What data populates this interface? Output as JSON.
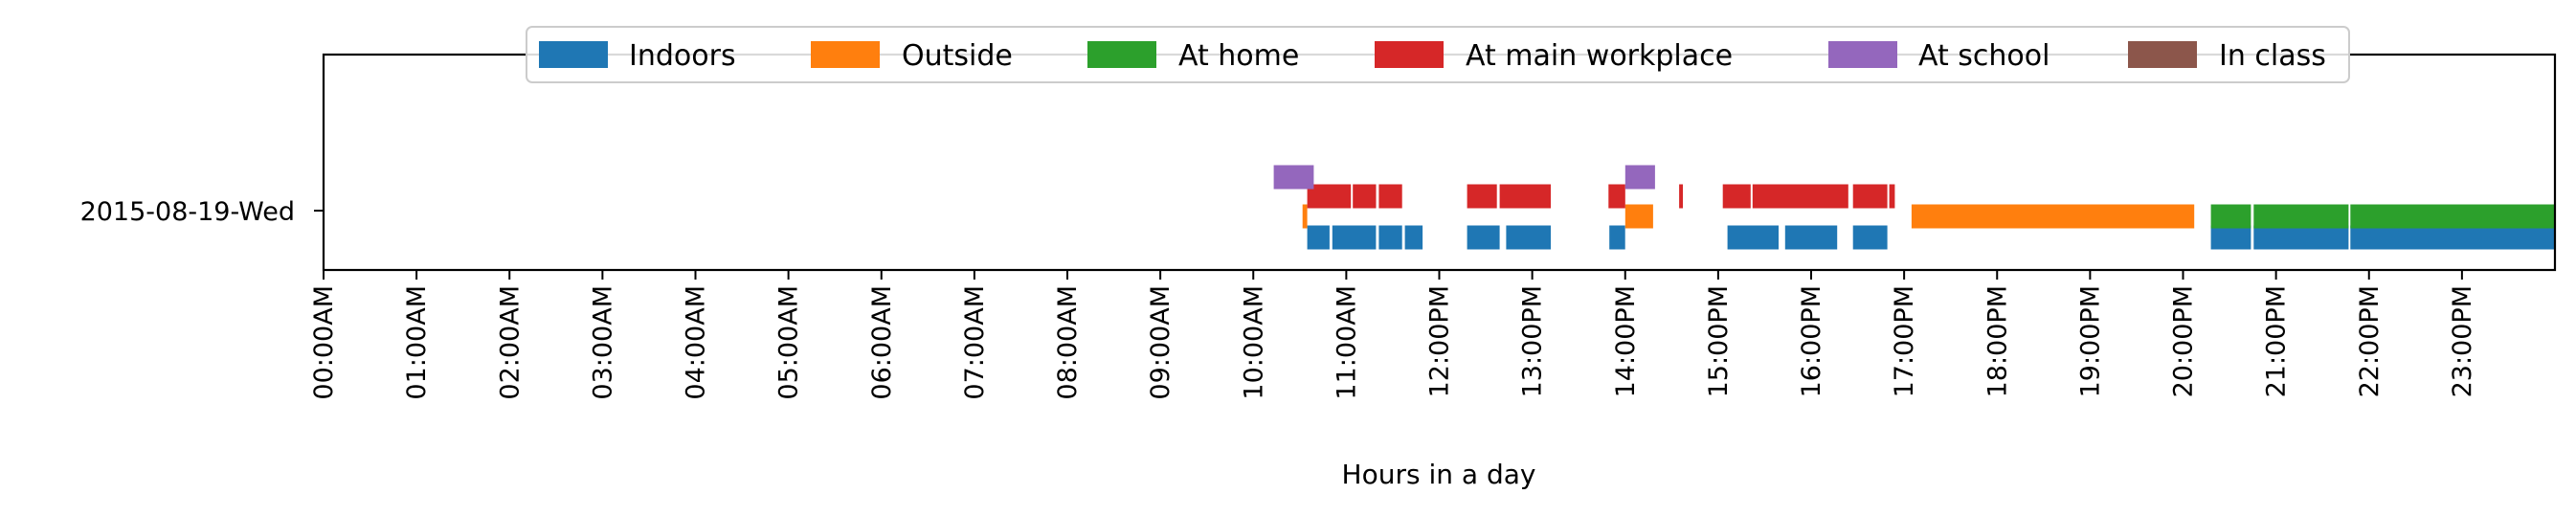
{
  "chart_data": {
    "type": "timeline",
    "xlabel": "Hours in a day",
    "x_ticks": [
      "00:00AM",
      "01:00AM",
      "02:00AM",
      "03:00AM",
      "04:00AM",
      "05:00AM",
      "06:00AM",
      "07:00AM",
      "08:00AM",
      "09:00AM",
      "10:00AM",
      "11:00AM",
      "12:00PM",
      "13:00PM",
      "14:00PM",
      "15:00PM",
      "16:00PM",
      "17:00PM",
      "18:00PM",
      "19:00PM",
      "20:00PM",
      "21:00PM",
      "22:00PM",
      "23:00PM"
    ],
    "xlim": [
      0,
      24
    ],
    "y_categories": [
      "2015-08-19-Wed"
    ],
    "legend_position": "top-center",
    "series": [
      {
        "name": "Indoors",
        "color": "#1f77b4",
        "lane": 0,
        "intervals": [
          [
            10.58,
            10.82
          ],
          [
            10.85,
            11.32
          ],
          [
            11.35,
            11.6
          ],
          [
            11.63,
            11.82
          ],
          [
            12.3,
            12.65
          ],
          [
            12.72,
            13.2
          ],
          [
            13.83,
            14.0
          ],
          [
            15.1,
            15.65
          ],
          [
            15.72,
            16.28
          ],
          [
            16.45,
            16.82
          ],
          [
            20.3,
            20.73
          ],
          [
            20.76,
            21.78
          ],
          [
            21.8,
            24.0
          ]
        ]
      },
      {
        "name": "Outside",
        "color": "#ff7f0e",
        "lane": 1,
        "intervals": [
          [
            10.53,
            10.58
          ],
          [
            14.0,
            14.3
          ],
          [
            17.08,
            20.12
          ]
        ]
      },
      {
        "name": "At home",
        "color": "#2ca02c",
        "lane": 1,
        "intervals": [
          [
            20.3,
            20.73
          ],
          [
            20.76,
            21.78
          ],
          [
            21.8,
            24.0
          ]
        ]
      },
      {
        "name": "At main workplace",
        "color": "#d62728",
        "lane": 2,
        "intervals": [
          [
            10.58,
            11.05
          ],
          [
            11.07,
            11.32
          ],
          [
            11.35,
            11.6
          ],
          [
            12.3,
            12.62
          ],
          [
            12.65,
            13.2
          ],
          [
            13.82,
            14.0
          ],
          [
            14.58,
            14.62
          ],
          [
            15.05,
            15.35
          ],
          [
            15.37,
            16.4
          ],
          [
            16.45,
            16.82
          ],
          [
            16.84,
            16.9
          ]
        ]
      },
      {
        "name": "At school",
        "color": "#9467bd",
        "lane": 3,
        "intervals": [
          [
            10.22,
            10.65
          ],
          [
            14.0,
            14.32
          ]
        ]
      },
      {
        "name": "In class",
        "color": "#8c564b",
        "lane": 4,
        "intervals": []
      }
    ]
  }
}
